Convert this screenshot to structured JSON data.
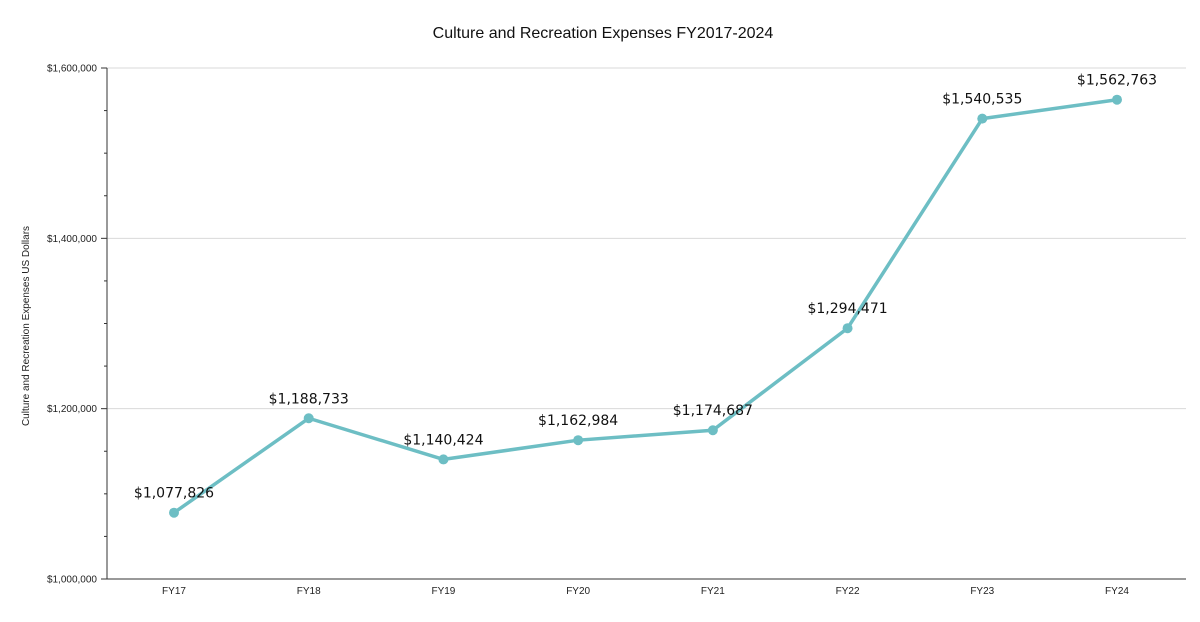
{
  "chart_data": {
    "type": "line",
    "title": "Culture and Recreation Expenses FY2017-2024",
    "xlabel": "",
    "ylabel": "Culture and Recreation Expenses US Dollars",
    "categories": [
      "FY17",
      "FY18",
      "FY19",
      "FY20",
      "FY21",
      "FY22",
      "FY23",
      "FY24"
    ],
    "series": [
      {
        "values": [
          1077826,
          1188733,
          1140424,
          1162984,
          1174687,
          1294471,
          1540535,
          1562763
        ],
        "data_labels": [
          "$1,077,826",
          "$1,188,733",
          "$1,140,424",
          "$1,162,984",
          "$1,174,687",
          "$1,294,471",
          "$1,540,535",
          "$1,562,763"
        ]
      }
    ],
    "ylim": [
      1000000,
      1600000
    ],
    "yticks": [
      1000000,
      1200000,
      1400000,
      1600000
    ],
    "ytick_labels": [
      "$1,000,000",
      "$1,200,000",
      "$1,400,000",
      "$1,600,000"
    ],
    "grid": true,
    "legend": "none",
    "colors": {
      "line": "#6dbec4",
      "grid": "#d9d9d9"
    }
  }
}
